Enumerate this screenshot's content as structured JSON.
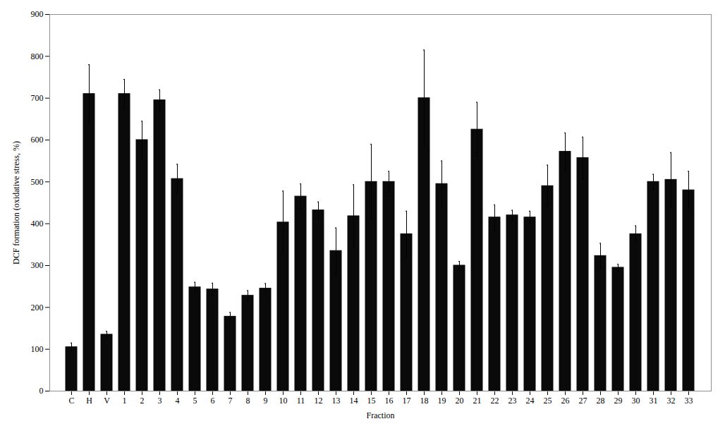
{
  "chart_data": {
    "type": "bar",
    "categories": [
      "C",
      "H",
      "V",
      "1",
      "2",
      "3",
      "4",
      "5",
      "6",
      "7",
      "8",
      "9",
      "10",
      "11",
      "12",
      "13",
      "14",
      "15",
      "16",
      "17",
      "18",
      "19",
      "20",
      "21",
      "22",
      "23",
      "24",
      "25",
      "26",
      "27",
      "28",
      "29",
      "30",
      "31",
      "32",
      "33"
    ],
    "values": [
      105,
      710,
      135,
      710,
      600,
      695,
      507,
      248,
      243,
      178,
      228,
      245,
      403,
      465,
      432,
      335,
      418,
      500,
      500,
      375,
      700,
      495,
      300,
      625,
      415,
      420,
      415,
      490,
      572,
      557,
      323,
      295,
      375,
      500,
      505,
      480
    ],
    "errors": [
      10,
      70,
      8,
      35,
      45,
      25,
      35,
      12,
      15,
      10,
      12,
      12,
      75,
      30,
      20,
      55,
      75,
      90,
      25,
      55,
      115,
      55,
      10,
      65,
      30,
      12,
      15,
      50,
      45,
      50,
      30,
      8,
      20,
      18,
      65,
      45
    ],
    "color": "#0a0a0a",
    "xlabel": "Fraction",
    "ylabel": "DCF formation (oxidative stress, %)",
    "ylim": [
      0,
      900
    ],
    "yticks": [
      0,
      100,
      200,
      300,
      400,
      500,
      600,
      700,
      800,
      900
    ],
    "grid": false
  }
}
